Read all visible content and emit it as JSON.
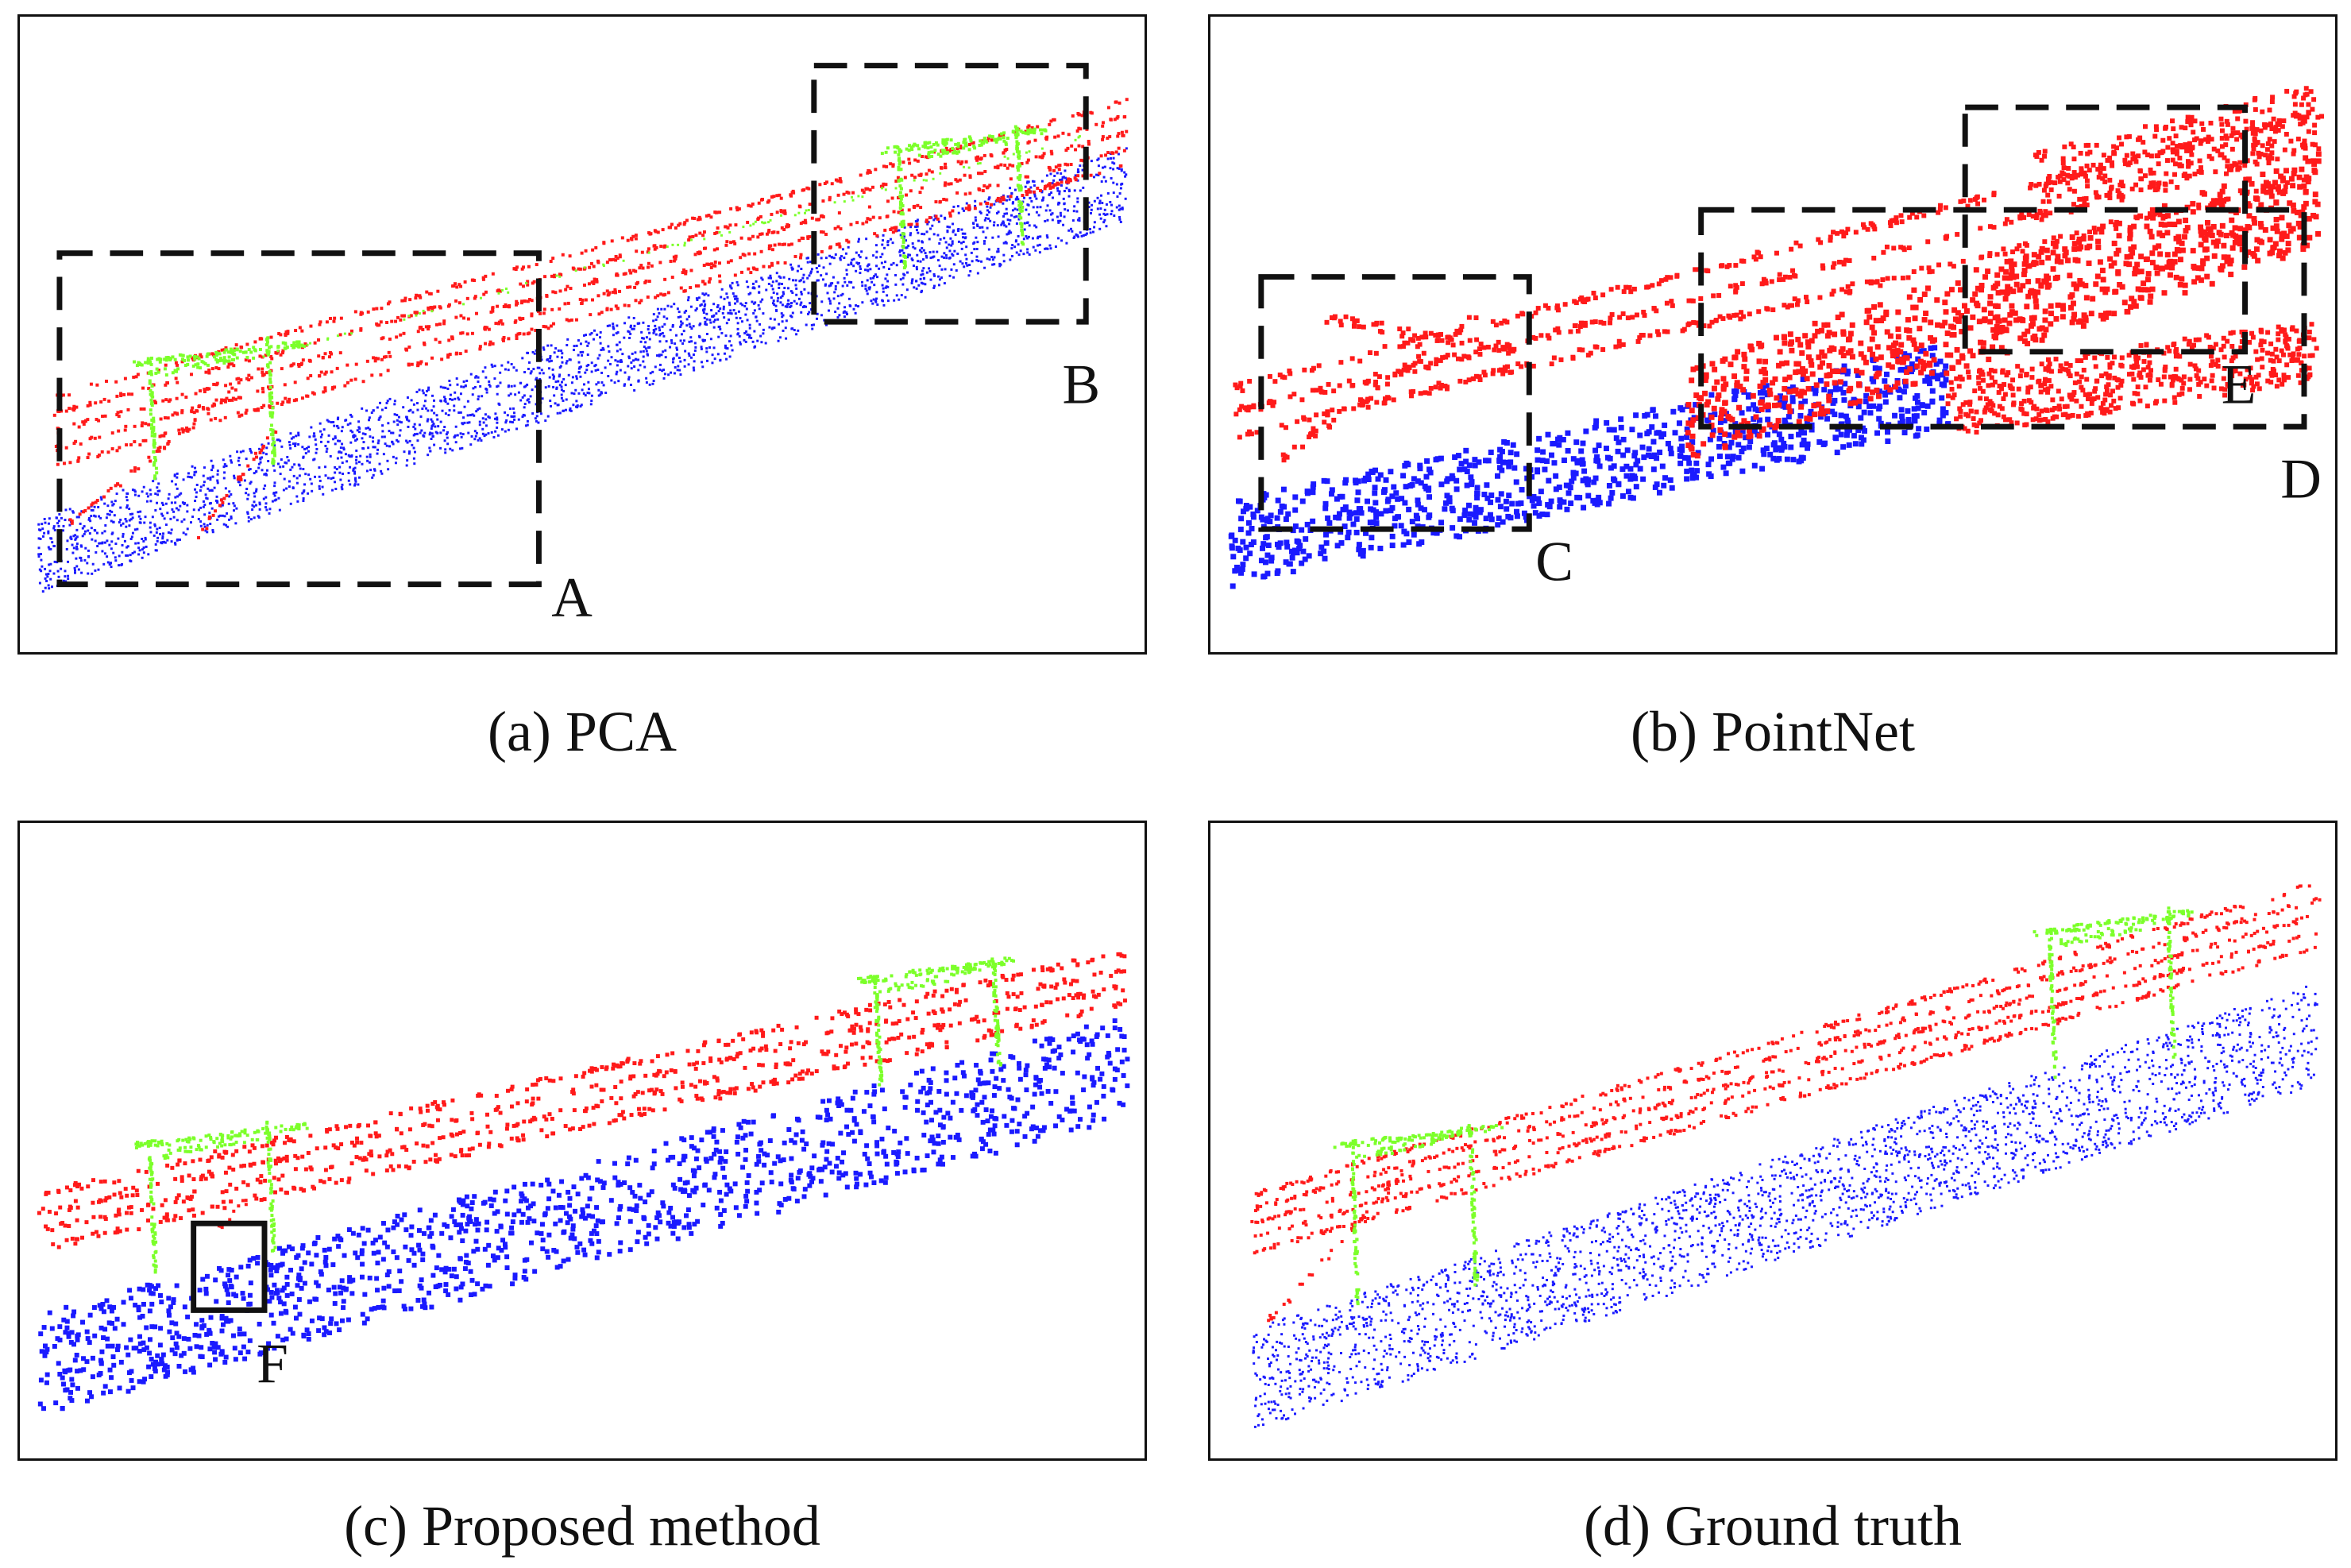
{
  "panels": [
    {
      "id": "a",
      "caption": "(a) PCA",
      "box_labels": [
        "A",
        "B"
      ]
    },
    {
      "id": "b",
      "caption": "(b) PointNet",
      "box_labels": [
        "C",
        "D",
        "E"
      ]
    },
    {
      "id": "c",
      "caption": "(c) Proposed method",
      "box_labels": [
        "F"
      ]
    },
    {
      "id": "d",
      "caption": "(d) Ground truth",
      "box_labels": []
    }
  ],
  "colors": {
    "ground_points": "#1a1aff",
    "wire_points": "#ff1a1a",
    "pole_points": "#7cff2a",
    "frame": "#111111"
  }
}
